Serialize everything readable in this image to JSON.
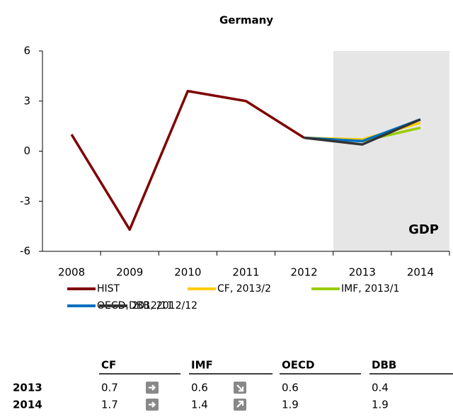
{
  "chart_data": {
    "type": "line",
    "title": "Germany",
    "annotation": "GDP",
    "categories": [
      "2008",
      "2009",
      "2010",
      "2011",
      "2012",
      "2013",
      "2014"
    ],
    "series": [
      {
        "name": "HIST",
        "color": "#7f0000",
        "values": [
          1.0,
          -4.7,
          3.6,
          3.0,
          0.8,
          null,
          null
        ]
      },
      {
        "name": "CF, 2013/2",
        "color": "#ffcc00",
        "values": [
          null,
          null,
          null,
          null,
          0.8,
          0.7,
          1.7
        ]
      },
      {
        "name": "IMF, 2013/1",
        "color": "#99cc00",
        "values": [
          null,
          null,
          null,
          null,
          0.8,
          0.6,
          1.4
        ]
      },
      {
        "name": "OECD, 2012/11",
        "color": "#0070c0",
        "values": [
          null,
          null,
          null,
          null,
          0.8,
          0.6,
          1.9
        ]
      },
      {
        "name": "DBB, 2012/12",
        "color": "#333333",
        "values": [
          null,
          null,
          null,
          null,
          0.8,
          0.4,
          1.9
        ]
      }
    ],
    "ylim": [
      -6,
      6
    ],
    "yticks": [
      -6,
      -3,
      0,
      3,
      6
    ]
  },
  "table": {
    "columns": [
      "CF",
      "IMF",
      "OECD",
      "DBB"
    ],
    "rows": [
      {
        "label": "2013",
        "values": [
          0.7,
          0.6,
          0.6,
          0.4
        ]
      },
      {
        "label": "2014",
        "values": [
          1.7,
          1.4,
          1.9,
          1.9
        ]
      }
    ]
  }
}
